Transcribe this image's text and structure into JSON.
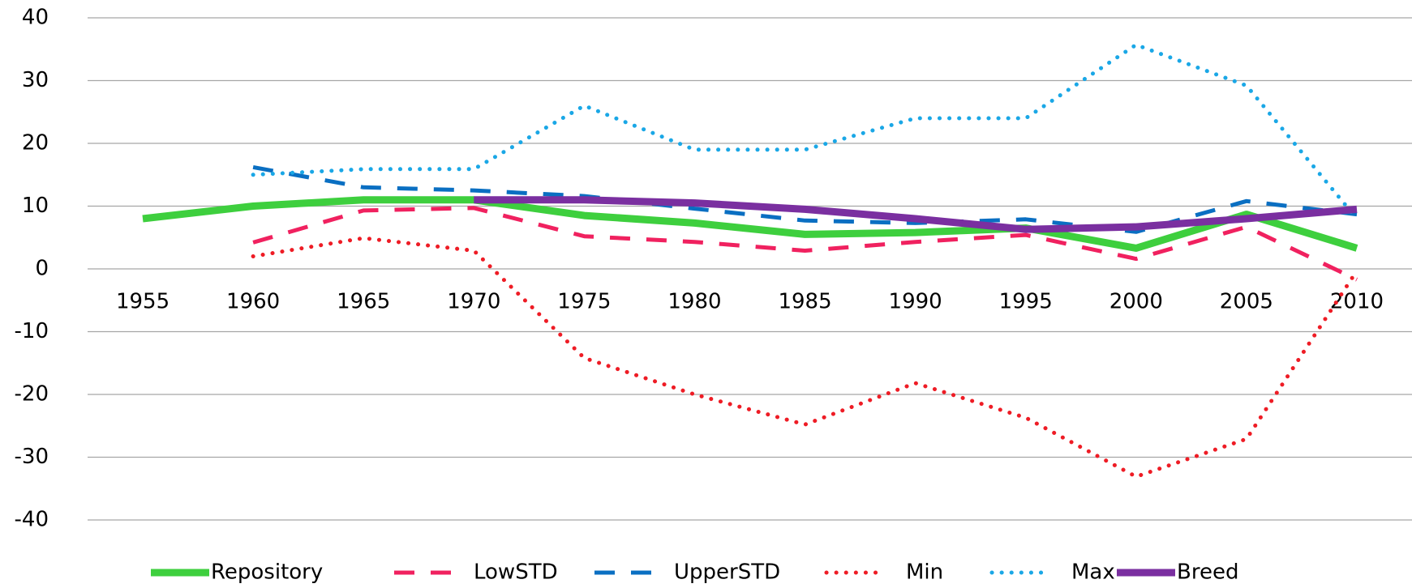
{
  "chart_data": {
    "type": "line",
    "categories": [
      "1955",
      "1960",
      "1965",
      "1970",
      "1975",
      "1980",
      "1985",
      "1990",
      "1995",
      "2000",
      "2005",
      "2010"
    ],
    "series": [
      {
        "name": "Repository",
        "color": "#3ecf3e",
        "dash": "solid",
        "width": 9,
        "values": [
          8,
          10,
          11,
          11,
          8.5,
          7.3,
          5.5,
          5.8,
          6.5,
          3.3,
          8.7,
          3.3
        ]
      },
      {
        "name": "LowSTD",
        "color": "#f0215f",
        "dash": "dash",
        "width": 5,
        "values": [
          null,
          4.2,
          9.3,
          9.7,
          5.2,
          4.3,
          2.9,
          4.3,
          5.4,
          1.6,
          6.7,
          -1.7
        ]
      },
      {
        "name": "UpperSTD",
        "color": "#0a6fc2",
        "dash": "dash",
        "width": 5,
        "values": [
          null,
          16.2,
          13,
          12.5,
          11.6,
          9.6,
          7.7,
          7.3,
          7.9,
          5.9,
          10.8,
          8.7
        ]
      },
      {
        "name": "Min",
        "color": "#ee1c25",
        "dash": "dot",
        "width": 5,
        "values": [
          null,
          2,
          4.9,
          2.9,
          -14.2,
          -20,
          -24.8,
          -18.2,
          -23.7,
          -33.1,
          -27.1,
          -0.3
        ]
      },
      {
        "name": "Max",
        "color": "#1aa7e6",
        "dash": "dot",
        "width": 5,
        "values": [
          null,
          15,
          15.9,
          15.9,
          26,
          19,
          19,
          24,
          24,
          35.7,
          29.2,
          8
        ]
      },
      {
        "name": "Breed",
        "color": "#7a2fa0",
        "dash": "solid",
        "width": 9,
        "values": [
          null,
          null,
          null,
          11,
          11,
          10.5,
          9.5,
          8,
          6.3,
          6.7,
          8,
          9.5
        ]
      }
    ],
    "ylim": [
      -40,
      40
    ],
    "yticks": [
      -40,
      -30,
      -20,
      -10,
      0,
      10,
      20,
      30,
      40
    ],
    "grid": true,
    "legend": "bottom"
  }
}
